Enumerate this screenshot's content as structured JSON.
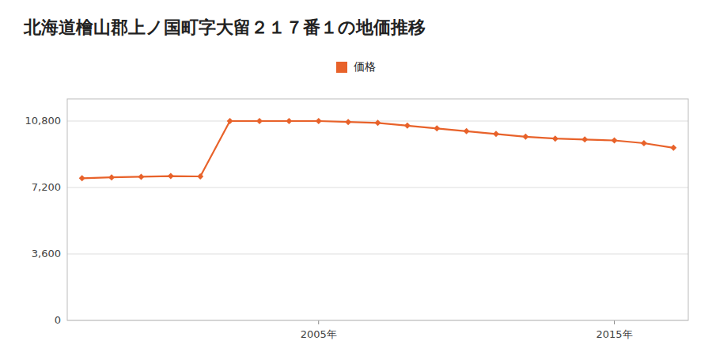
{
  "chart_data": {
    "type": "line",
    "title": "北海道檜山郡上ノ国町字大留２１７番１の地価推移",
    "x": [
      1997,
      1998,
      1999,
      2000,
      2001,
      2002,
      2003,
      2004,
      2005,
      2006,
      2007,
      2008,
      2009,
      2010,
      2011,
      2012,
      2013,
      2014,
      2015,
      2016,
      2017
    ],
    "series": [
      {
        "name": "価格",
        "color": "#E8622A",
        "marker": "diamond",
        "values": [
          7700,
          7750,
          7780,
          7820,
          7800,
          10800,
          10800,
          10800,
          10800,
          10750,
          10700,
          10550,
          10400,
          10250,
          10100,
          9950,
          9850,
          9800,
          9750,
          9600,
          9350
        ]
      }
    ],
    "xlim": [
      1996.5,
      2017.5
    ],
    "xticks": [
      {
        "value": 2005,
        "label": "2005年"
      },
      {
        "value": 2015,
        "label": "2015年"
      }
    ],
    "ylim": [
      0,
      12000
    ],
    "yticks": [
      0,
      {
        "value": 3600,
        "label": "3,600"
      },
      {
        "value": 7200,
        "label": "7,200"
      },
      {
        "value": 10800,
        "label": "10,800"
      }
    ],
    "grid": "y",
    "legend": "top"
  }
}
